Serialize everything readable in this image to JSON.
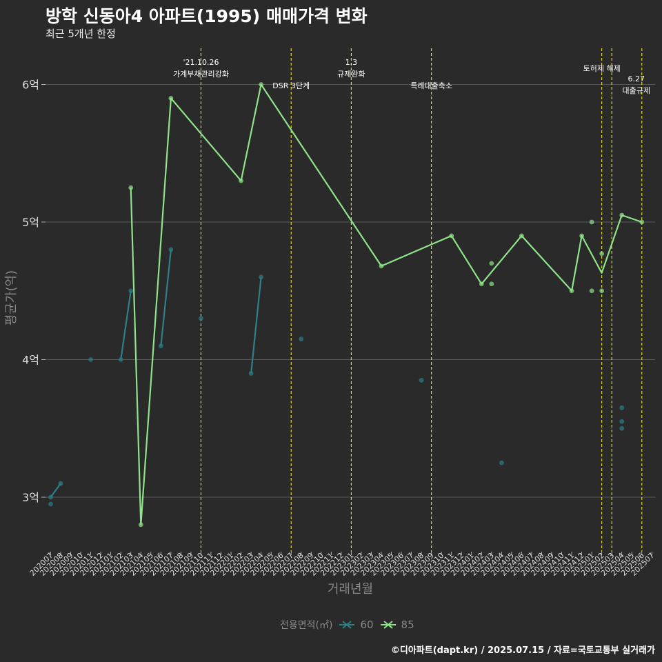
{
  "title": "방학 신동아4 아파트(1995) 매매가격 변화",
  "subtitle": "최근 5개년 한정",
  "caption": "©디아파트(dapt.kr) / 2025.07.15 / 자료=국토교통부 실거래가",
  "legend": {
    "title": "전용면적(㎡)",
    "items": [
      {
        "label": "60",
        "color": "#2e7f86"
      },
      {
        "label": "85",
        "color": "#8fe388"
      }
    ]
  },
  "chart_data": {
    "type": "line",
    "xlabel": "거래년월",
    "ylabel": "평균가(억)",
    "ylim": [
      2.68,
      6.28
    ],
    "yticks": [
      3,
      4,
      5,
      6
    ],
    "ytick_labels": [
      "3억",
      "4억",
      "5억",
      "6억"
    ],
    "grid": true,
    "legend_position": "bottom",
    "x_months": [
      "202007",
      "202008",
      "202009",
      "202010",
      "202011",
      "202012",
      "202101",
      "202102",
      "202103",
      "202104",
      "202105",
      "202106",
      "202107",
      "202108",
      "202109",
      "202110",
      "202111",
      "202112",
      "202201",
      "202202",
      "202203",
      "202204",
      "202205",
      "202206",
      "202207",
      "202208",
      "202209",
      "202210",
      "202211",
      "202212",
      "202301",
      "202302",
      "202303",
      "202304",
      "202305",
      "202306",
      "202307",
      "202308",
      "202309",
      "202310",
      "202311",
      "202312",
      "202401",
      "202402",
      "202403",
      "202404",
      "202405",
      "202406",
      "202407",
      "202408",
      "202409",
      "202410",
      "202411",
      "202412",
      "202501",
      "202502",
      "202503",
      "202504",
      "202505",
      "202506",
      "202507"
    ],
    "series": [
      {
        "name": "60",
        "color": "#2e7f86",
        "line": [
          [
            "202007",
            3.0
          ],
          [
            "202008",
            3.1
          ],
          null,
          [
            "202102",
            4.0
          ],
          [
            "202103",
            4.5
          ],
          null,
          [
            "202106",
            4.1
          ],
          [
            "202107",
            4.8
          ],
          null,
          [
            "202203",
            3.9
          ],
          [
            "202204",
            4.6
          ]
        ],
        "points": [
          [
            "202007",
            2.95
          ],
          [
            "202007",
            3.0
          ],
          [
            "202008",
            3.1
          ],
          [
            "202011",
            4.0
          ],
          [
            "202102",
            4.0
          ],
          [
            "202103",
            4.5
          ],
          [
            "202106",
            4.1
          ],
          [
            "202107",
            4.8
          ],
          [
            "202110",
            4.3
          ],
          [
            "202203",
            3.9
          ],
          [
            "202204",
            4.6
          ],
          [
            "202208",
            4.15
          ],
          [
            "202308",
            3.85
          ],
          [
            "202404",
            3.25
          ],
          [
            "202504",
            3.65
          ],
          [
            "202504",
            3.55
          ],
          [
            "202504",
            3.5
          ]
        ]
      },
      {
        "name": "85",
        "color": "#8fe388",
        "line": [
          [
            "202103",
            5.25
          ],
          [
            "202104",
            2.8
          ],
          [
            "202107",
            5.9
          ],
          [
            "202202",
            5.3
          ],
          [
            "202204",
            6.0
          ],
          [
            "202304",
            4.68
          ],
          [
            "202311",
            4.9
          ],
          [
            "202402",
            4.55
          ],
          [
            "202406",
            4.9
          ],
          [
            "202411",
            4.5
          ],
          [
            "202412",
            4.9
          ],
          [
            "202502",
            4.63
          ],
          [
            "202504",
            5.05
          ],
          [
            "202506",
            5.0
          ]
        ],
        "points": [
          [
            "202103",
            5.25
          ],
          [
            "202104",
            2.8
          ],
          [
            "202107",
            5.9
          ],
          [
            "202202",
            5.3
          ],
          [
            "202204",
            6.0
          ],
          [
            "202304",
            4.68
          ],
          [
            "202311",
            4.9
          ],
          [
            "202402",
            4.55
          ],
          [
            "202403",
            4.7
          ],
          [
            "202403",
            4.55
          ],
          [
            "202406",
            4.9
          ],
          [
            "202411",
            4.5
          ],
          [
            "202412",
            4.9
          ],
          [
            "202501",
            5.0
          ],
          [
            "202501",
            4.5
          ],
          [
            "202502",
            4.77
          ],
          [
            "202502",
            4.5
          ],
          [
            "202504",
            5.05
          ],
          [
            "202506",
            5.0
          ]
        ]
      }
    ],
    "annotations": [
      {
        "month": "202110",
        "lines": [
          "'21.10.26",
          "가계부채관리강화"
        ]
      },
      {
        "month": "202207",
        "lines": [
          "DSR 3단계"
        ]
      },
      {
        "month": "202301",
        "lines": [
          "1.3",
          "규제완화"
        ]
      },
      {
        "month": "202309",
        "lines": [
          "특례대출축소"
        ]
      },
      {
        "month": "202502",
        "lines": [
          "토허제 해제"
        ]
      },
      {
        "month": "202503",
        "lines": []
      },
      {
        "month": "202506",
        "lines": [
          "6.27",
          "대출규제"
        ]
      }
    ]
  }
}
